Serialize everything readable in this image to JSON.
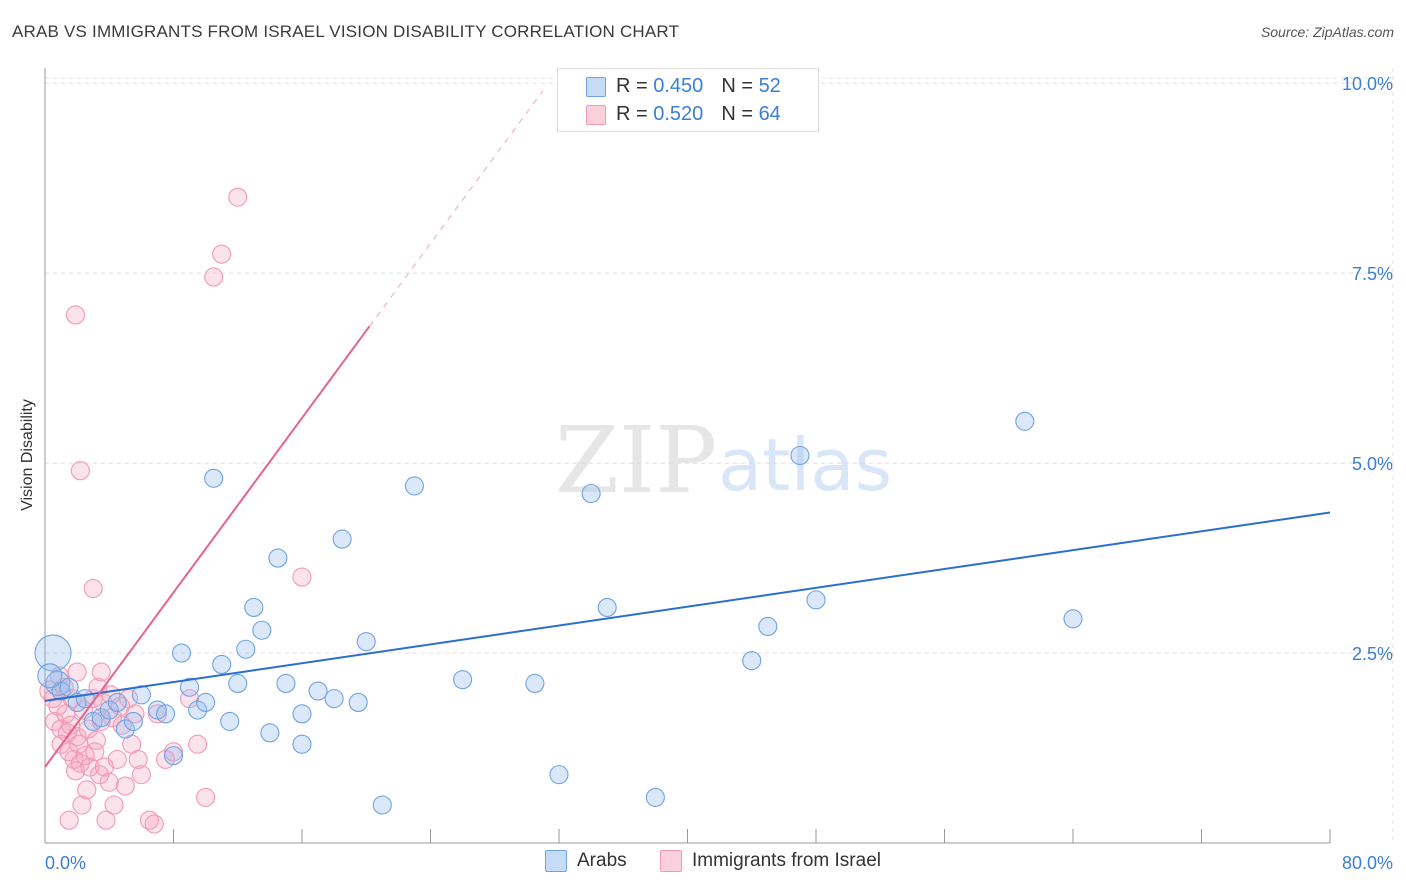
{
  "title": "ARAB VS IMMIGRANTS FROM ISRAEL VISION DISABILITY CORRELATION CHART",
  "source": "Source: ZipAtlas.com",
  "colors": {
    "blue": "#6fa3e3",
    "blue_line": "#2a6fcf",
    "pink": "#f29ab4",
    "pink_line": "#e4648f",
    "tick_label": "#3a7fd5"
  },
  "legend": {
    "r_label": "R =",
    "n_label": "N =",
    "series": [
      {
        "r": "0.450",
        "n": "52"
      },
      {
        "r": "0.520",
        "n": "64"
      }
    ]
  },
  "bottom_legend": [
    "Arabs",
    "Immigrants from Israel"
  ],
  "watermark": {
    "zip": "ZIP",
    "atlas": "atlas"
  },
  "chart_data": {
    "type": "scatter",
    "title": "ARAB VS IMMIGRANTS FROM ISRAEL VISION DISABILITY CORRELATION CHART",
    "xlabel": "",
    "ylabel": "Vision Disability",
    "xlim": [
      0,
      80
    ],
    "ylim": [
      0,
      10.2
    ],
    "x_tick_labels": [
      "0.0%",
      "80.0%"
    ],
    "y_ticks": [
      2.5,
      5.0,
      7.5,
      10.0
    ],
    "y_tick_labels": [
      "2.5%",
      "5.0%",
      "7.5%",
      "10.0%"
    ],
    "grid": true,
    "series": [
      {
        "name": "Arabs",
        "trend": {
          "x0": 0,
          "y0": 1.87,
          "x1": 80,
          "y1": 4.35
        },
        "points": [
          [
            0.5,
            2.5,
            18
          ],
          [
            0.8,
            2.1,
            12
          ],
          [
            1.0,
            2.0,
            9
          ],
          [
            1.5,
            2.05,
            9
          ],
          [
            2.0,
            1.85,
            9
          ],
          [
            2.5,
            1.9,
            9
          ],
          [
            3.0,
            1.6,
            9
          ],
          [
            3.5,
            1.65,
            9
          ],
          [
            4.0,
            1.75,
            9
          ],
          [
            4.5,
            1.85,
            9
          ],
          [
            5.0,
            1.5,
            9
          ],
          [
            5.5,
            1.6,
            9
          ],
          [
            6.0,
            1.95,
            9
          ],
          [
            7.0,
            1.75,
            9
          ],
          [
            7.5,
            1.7,
            9
          ],
          [
            8.0,
            1.15,
            9
          ],
          [
            8.5,
            2.5,
            9
          ],
          [
            9.0,
            2.05,
            9
          ],
          [
            9.5,
            1.75,
            9
          ],
          [
            10.0,
            1.85,
            9
          ],
          [
            10.5,
            4.8,
            9
          ],
          [
            11.0,
            2.35,
            9
          ],
          [
            11.5,
            1.6,
            9
          ],
          [
            12.0,
            2.1,
            9
          ],
          [
            12.5,
            2.55,
            9
          ],
          [
            13.0,
            3.1,
            9
          ],
          [
            13.5,
            2.8,
            9
          ],
          [
            14.0,
            1.45,
            9
          ],
          [
            14.5,
            3.75,
            9
          ],
          [
            15.0,
            2.1,
            9
          ],
          [
            16.0,
            1.7,
            9
          ],
          [
            16.0,
            1.3,
            9
          ],
          [
            17.0,
            2.0,
            9
          ],
          [
            18.0,
            1.9,
            9
          ],
          [
            18.5,
            4.0,
            9
          ],
          [
            19.5,
            1.85,
            9
          ],
          [
            20.0,
            2.65,
            9
          ],
          [
            21.0,
            0.5,
            9
          ],
          [
            23.0,
            4.7,
            9
          ],
          [
            26.0,
            2.15,
            9
          ],
          [
            30.5,
            2.1,
            9
          ],
          [
            32.0,
            0.9,
            9
          ],
          [
            34.0,
            4.6,
            9
          ],
          [
            35.0,
            3.1,
            9
          ],
          [
            38.0,
            0.6,
            9
          ],
          [
            44.0,
            2.4,
            9
          ],
          [
            45.0,
            2.85,
            9
          ],
          [
            47.0,
            5.1,
            9
          ],
          [
            48.0,
            3.2,
            9
          ],
          [
            61.0,
            5.55,
            9
          ],
          [
            64.0,
            2.95,
            9
          ],
          [
            0.3,
            2.2,
            12
          ]
        ]
      },
      {
        "name": "Immigrants from Israel",
        "trend": {
          "x0": 0,
          "y0": 1.0,
          "x1": 20.2,
          "y1": 6.8,
          "x_dash_end": 31,
          "y_dash_end": 9.9
        },
        "points": [
          [
            0.3,
            2.0,
            10
          ],
          [
            0.5,
            1.9,
            9
          ],
          [
            0.6,
            1.6,
            9
          ],
          [
            0.8,
            1.8,
            9
          ],
          [
            1.0,
            1.5,
            9
          ],
          [
            1.0,
            1.3,
            9
          ],
          [
            1.2,
            2.05,
            9
          ],
          [
            1.3,
            1.7,
            9
          ],
          [
            1.4,
            1.45,
            9
          ],
          [
            1.5,
            1.2,
            9
          ],
          [
            1.6,
            1.55,
            9
          ],
          [
            1.7,
            1.9,
            9
          ],
          [
            1.8,
            1.1,
            9
          ],
          [
            1.9,
            0.95,
            9
          ],
          [
            2.0,
            1.4,
            9
          ],
          [
            2.1,
            1.3,
            9
          ],
          [
            2.2,
            1.05,
            9
          ],
          [
            2.3,
            0.5,
            9
          ],
          [
            2.4,
            1.75,
            9
          ],
          [
            2.5,
            1.15,
            9
          ],
          [
            2.6,
            0.7,
            9
          ],
          [
            2.7,
            1.5,
            9
          ],
          [
            2.8,
            1.0,
            9
          ],
          [
            3.0,
            1.9,
            9
          ],
          [
            3.1,
            1.2,
            9
          ],
          [
            3.2,
            1.35,
            9
          ],
          [
            3.3,
            2.05,
            9
          ],
          [
            3.4,
            0.9,
            9
          ],
          [
            3.5,
            1.6,
            9
          ],
          [
            3.6,
            1.85,
            9
          ],
          [
            3.7,
            1.0,
            9
          ],
          [
            3.8,
            0.3,
            9
          ],
          [
            4.0,
            0.8,
            9
          ],
          [
            4.1,
            1.95,
            9
          ],
          [
            4.2,
            1.65,
            9
          ],
          [
            4.3,
            0.5,
            9
          ],
          [
            4.5,
            1.1,
            9
          ],
          [
            4.7,
            1.8,
            9
          ],
          [
            4.8,
            1.55,
            9
          ],
          [
            5.0,
            0.75,
            9
          ],
          [
            5.2,
            1.9,
            9
          ],
          [
            5.4,
            1.3,
            9
          ],
          [
            5.6,
            1.7,
            9
          ],
          [
            5.8,
            1.1,
            9
          ],
          [
            6.0,
            0.9,
            9
          ],
          [
            6.5,
            0.3,
            9
          ],
          [
            7.0,
            1.7,
            9
          ],
          [
            7.5,
            1.1,
            9
          ],
          [
            8.0,
            1.2,
            9
          ],
          [
            9.0,
            1.9,
            9
          ],
          [
            9.5,
            1.3,
            9
          ],
          [
            10.0,
            0.6,
            9
          ],
          [
            1.9,
            6.95,
            9
          ],
          [
            2.2,
            4.9,
            9
          ],
          [
            3.0,
            3.35,
            9
          ],
          [
            10.5,
            7.45,
            9
          ],
          [
            11.0,
            7.75,
            9
          ],
          [
            12.0,
            8.5,
            9
          ],
          [
            16.0,
            3.5,
            9
          ],
          [
            1.5,
            0.3,
            9
          ],
          [
            0.9,
            2.2,
            9
          ],
          [
            2.0,
            2.25,
            9
          ],
          [
            3.5,
            2.25,
            9
          ],
          [
            6.8,
            0.25,
            9
          ]
        ]
      }
    ]
  }
}
